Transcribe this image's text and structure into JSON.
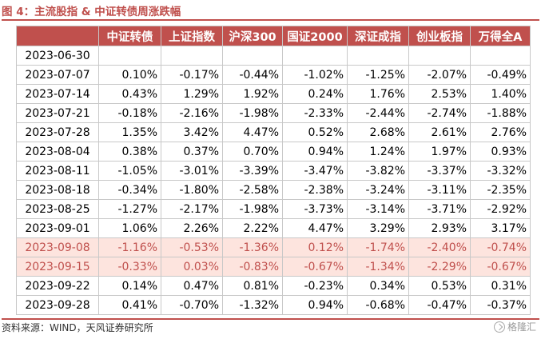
{
  "title": "图 4：主流股指 & 中证转债周涨跌幅",
  "source": "资料来源：WIND，天风证券研究所",
  "watermark": "格隆汇",
  "table": {
    "headers": [
      "",
      "中证转债",
      "上证指数",
      "沪深300",
      "国证2000",
      "深证成指",
      "创业板指",
      "万得全A"
    ],
    "rows": [
      {
        "date": "2023-06-30",
        "values": [
          "",
          "",
          "",
          "",
          "",
          "",
          ""
        ],
        "highlight": false
      },
      {
        "date": "2023-07-07",
        "values": [
          "0.10%",
          "-0.17%",
          "-0.44%",
          "-1.02%",
          "-1.25%",
          "-2.07%",
          "-0.49%"
        ],
        "highlight": false
      },
      {
        "date": "2023-07-14",
        "values": [
          "0.43%",
          "1.29%",
          "1.92%",
          "0.24%",
          "1.76%",
          "2.53%",
          "1.40%"
        ],
        "highlight": false
      },
      {
        "date": "2023-07-21",
        "values": [
          "-0.18%",
          "-2.16%",
          "-1.98%",
          "-2.33%",
          "-2.44%",
          "-2.74%",
          "-1.88%"
        ],
        "highlight": false
      },
      {
        "date": "2023-07-28",
        "values": [
          "1.35%",
          "3.42%",
          "4.47%",
          "0.52%",
          "2.68%",
          "2.61%",
          "2.76%"
        ],
        "highlight": false
      },
      {
        "date": "2023-08-04",
        "values": [
          "0.38%",
          "0.37%",
          "0.70%",
          "0.94%",
          "1.24%",
          "1.97%",
          "0.93%"
        ],
        "highlight": false
      },
      {
        "date": "2023-08-11",
        "values": [
          "-1.05%",
          "-3.01%",
          "-3.39%",
          "-3.47%",
          "-3.82%",
          "-3.37%",
          "-3.32%"
        ],
        "highlight": false
      },
      {
        "date": "2023-08-18",
        "values": [
          "-0.34%",
          "-1.80%",
          "-2.58%",
          "-2.38%",
          "-3.24%",
          "-3.11%",
          "-2.35%"
        ],
        "highlight": false
      },
      {
        "date": "2023-08-25",
        "values": [
          "-1.27%",
          "-2.17%",
          "-1.98%",
          "-3.73%",
          "-3.14%",
          "-3.71%",
          "-2.92%"
        ],
        "highlight": false
      },
      {
        "date": "2023-09-01",
        "values": [
          "1.06%",
          "2.26%",
          "2.22%",
          "4.47%",
          "3.29%",
          "2.93%",
          "3.17%"
        ],
        "highlight": false
      },
      {
        "date": "2023-09-08",
        "values": [
          "-1.16%",
          "-0.53%",
          "-1.36%",
          "0.12%",
          "-1.74%",
          "-2.40%",
          "-0.74%"
        ],
        "highlight": true
      },
      {
        "date": "2023-09-15",
        "values": [
          "-0.33%",
          "0.03%",
          "-0.83%",
          "-0.67%",
          "-1.34%",
          "-2.29%",
          "-0.67%"
        ],
        "highlight": true
      },
      {
        "date": "2023-09-22",
        "values": [
          "0.14%",
          "0.47%",
          "0.81%",
          "-0.23%",
          "0.34%",
          "0.53%",
          "0.31%"
        ],
        "highlight": false
      },
      {
        "date": "2023-09-28",
        "values": [
          "0.41%",
          "-0.70%",
          "-1.32%",
          "0.94%",
          "-0.68%",
          "-0.47%",
          "-0.37%"
        ],
        "highlight": false
      }
    ]
  }
}
